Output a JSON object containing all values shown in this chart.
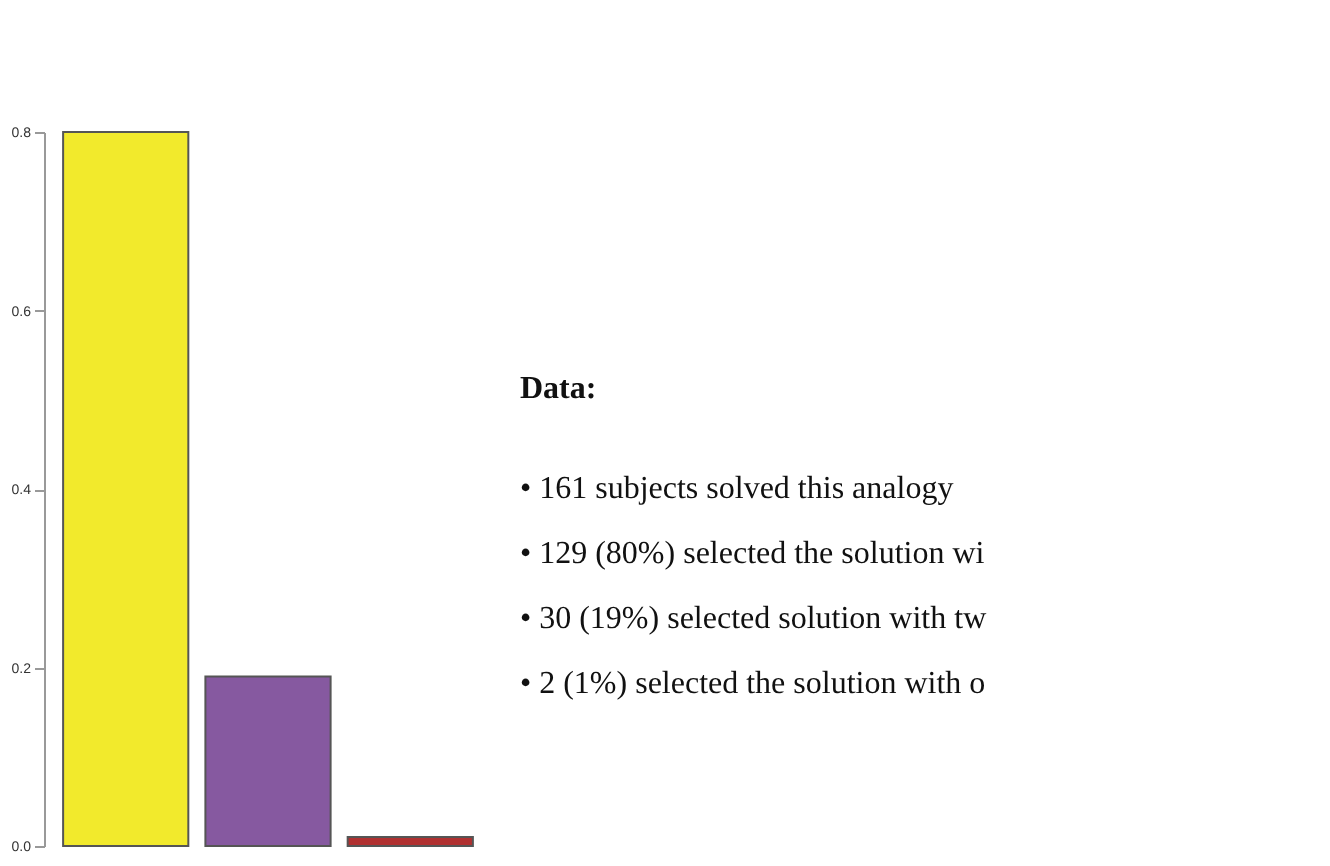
{
  "chart_data": {
    "type": "bar",
    "categories": [
      null,
      null,
      null
    ],
    "values": [
      0.8,
      0.19,
      0.01
    ],
    "colors": [
      "#f2ea2c",
      "#8659a0",
      "#b03030"
    ],
    "ylim": [
      0,
      0.8
    ],
    "yticks": [
      {
        "value": 0,
        "label": "0.0"
      },
      {
        "value": 0.2,
        "label": "0.2"
      },
      {
        "value": 0.4,
        "label": "0.4"
      },
      {
        "value": 0.6,
        "label": "0.6"
      },
      {
        "value": 0.8,
        "label": "0.8"
      }
    ],
    "grid": false,
    "tick_labels": "y",
    "annotations": [
      "Data:",
      "• 161 subjects solved this analogy",
      "• 129 (80%) selected the solution  wi",
      "• 30 (19%) selected solution with tw",
      "• 2 (1%) selected the solution with o"
    ]
  }
}
